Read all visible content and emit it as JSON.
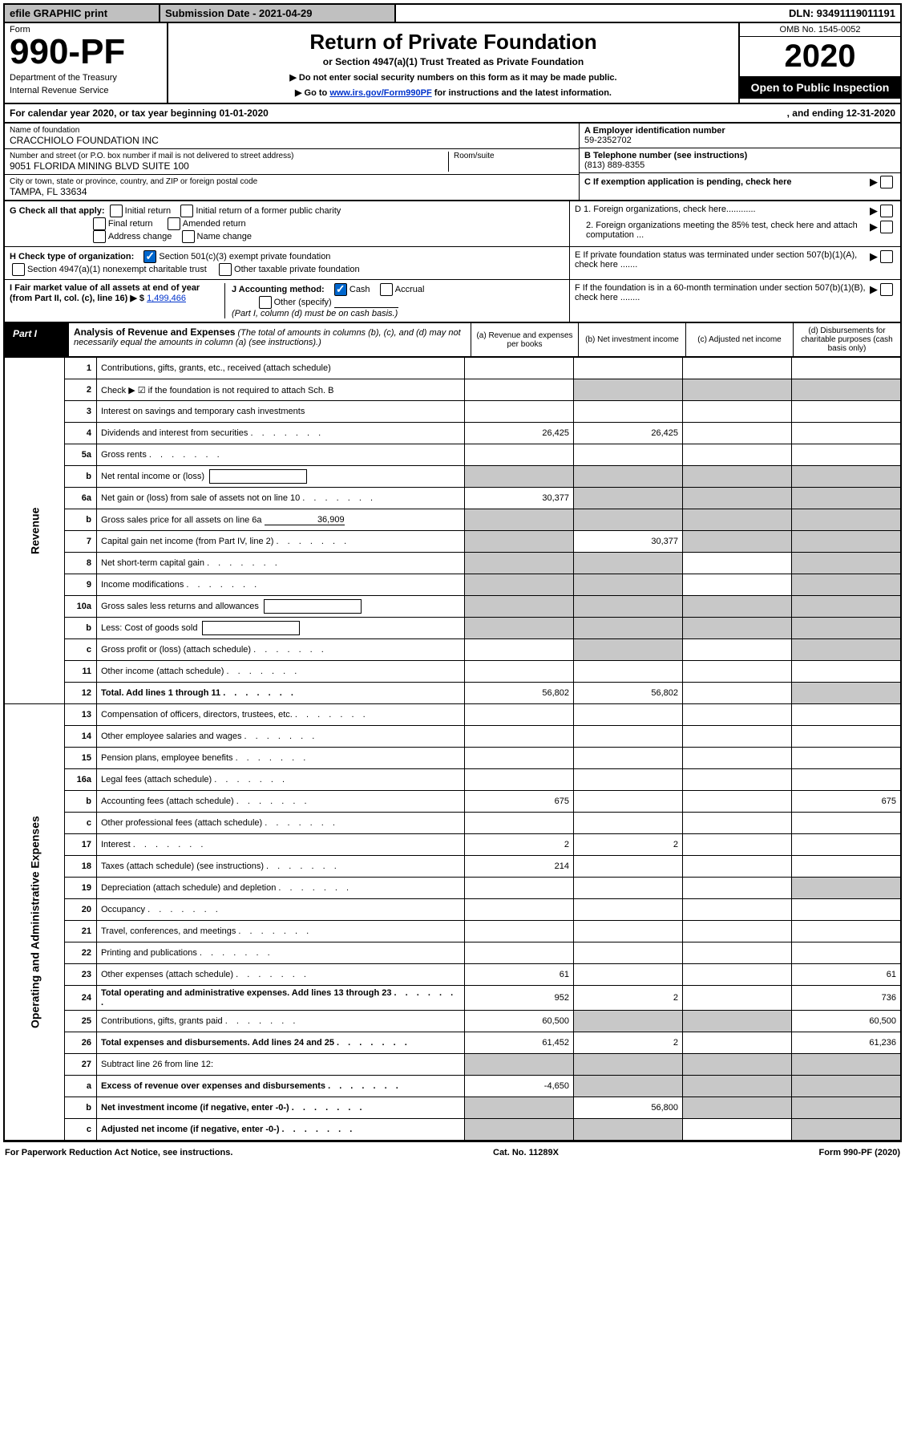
{
  "top": {
    "efile": "efile GRAPHIC print",
    "submission": "Submission Date - 2021-04-29",
    "dln": "DLN: 93491119011191"
  },
  "header": {
    "form_label": "Form",
    "form_number": "990-PF",
    "dept": "Department of the Treasury",
    "irs": "Internal Revenue Service",
    "title": "Return of Private Foundation",
    "subtitle": "or Section 4947(a)(1) Trust Treated as Private Foundation",
    "note1": "▶ Do not enter social security numbers on this form as it may be made public.",
    "note2_pre": "▶ Go to ",
    "note2_link": "www.irs.gov/Form990PF",
    "note2_post": " for instructions and the latest information.",
    "omb": "OMB No. 1545-0052",
    "year": "2020",
    "open": "Open to Public Inspection"
  },
  "cal": {
    "left": "For calendar year 2020, or tax year beginning 01-01-2020",
    "right": ", and ending 12-31-2020"
  },
  "info": {
    "name_label": "Name of foundation",
    "name": "CRACCHIOLO FOUNDATION INC",
    "addr_label": "Number and street (or P.O. box number if mail is not delivered to street address)",
    "addr": "9051 FLORIDA MINING BLVD SUITE 100",
    "room_label": "Room/suite",
    "city_label": "City or town, state or province, country, and ZIP or foreign postal code",
    "city": "TAMPA, FL  33634",
    "a_label": "A Employer identification number",
    "a_value": "59-2352702",
    "b_label": "B Telephone number (see instructions)",
    "b_value": "(813) 889-8355",
    "c_label": "C If exemption application is pending, check here"
  },
  "checks": {
    "g_label": "G Check all that apply:",
    "g_opts": [
      "Initial return",
      "Initial return of a former public charity",
      "Final return",
      "Amended return",
      "Address change",
      "Name change"
    ],
    "h_label": "H Check type of organization:",
    "h_opt1": "Section 501(c)(3) exempt private foundation",
    "h_opt2": "Section 4947(a)(1) nonexempt charitable trust",
    "h_opt3": "Other taxable private foundation",
    "i_label": "I Fair market value of all assets at end of year (from Part II, col. (c), line 16) ▶ $",
    "i_value": "1,499,466",
    "j_label": "J Accounting method:",
    "j_cash": "Cash",
    "j_accrual": "Accrual",
    "j_other": "Other (specify)",
    "j_note": "(Part I, column (d) must be on cash basis.)",
    "d1": "D 1. Foreign organizations, check here............",
    "d2": "2. Foreign organizations meeting the 85% test, check here and attach computation ...",
    "e": "E If private foundation status was terminated under section 507(b)(1)(A), check here .......",
    "f": "F If the foundation is in a 60-month termination under section 507(b)(1)(B), check here ........"
  },
  "part1": {
    "label": "Part I",
    "title": "Analysis of Revenue and Expenses",
    "note": "(The total of amounts in columns (b), (c), and (d) may not necessarily equal the amounts in column (a) (see instructions).)",
    "col_a": "(a)   Revenue and expenses per books",
    "col_b": "(b)   Net investment income",
    "col_c": "(c)   Adjusted net income",
    "col_d": "(d)   Disbursements for charitable purposes (cash basis only)"
  },
  "sides": {
    "revenue": "Revenue",
    "expenses": "Operating and Administrative Expenses"
  },
  "rows": [
    {
      "n": "1",
      "d": "Contributions, gifts, grants, etc., received (attach schedule)",
      "a": "",
      "b": "",
      "c": "",
      "e": ""
    },
    {
      "n": "2",
      "d": "Check ▶ ☑ if the foundation is not required to attach Sch. B",
      "a": "",
      "b": "",
      "c": "",
      "e": "",
      "shade_b": true,
      "shade_c": true,
      "shade_d": true
    },
    {
      "n": "3",
      "d": "Interest on savings and temporary cash investments",
      "a": "",
      "b": "",
      "c": "",
      "e": ""
    },
    {
      "n": "4",
      "d": "Dividends and interest from securities",
      "a": "26,425",
      "b": "26,425",
      "c": "",
      "e": ""
    },
    {
      "n": "5a",
      "d": "Gross rents",
      "a": "",
      "b": "",
      "c": "",
      "e": ""
    },
    {
      "n": "b",
      "d": "Net rental income or (loss)",
      "a": "",
      "b": "",
      "c": "",
      "e": "",
      "inline_box": true,
      "shade_all": true
    },
    {
      "n": "6a",
      "d": "Net gain or (loss) from sale of assets not on line 10",
      "a": "30,377",
      "b": "",
      "c": "",
      "e": "",
      "shade_b": true,
      "shade_c": true,
      "shade_d": true
    },
    {
      "n": "b",
      "d": "Gross sales price for all assets on line 6a",
      "a": "",
      "b": "",
      "c": "",
      "e": "",
      "inline_val": "36,909",
      "shade_all": true
    },
    {
      "n": "7",
      "d": "Capital gain net income (from Part IV, line 2)",
      "a": "",
      "b": "30,377",
      "c": "",
      "e": "",
      "shade_a": true,
      "shade_c": true,
      "shade_d": true
    },
    {
      "n": "8",
      "d": "Net short-term capital gain",
      "a": "",
      "b": "",
      "c": "",
      "e": "",
      "shade_a": true,
      "shade_b": true,
      "shade_d": true
    },
    {
      "n": "9",
      "d": "Income modifications",
      "a": "",
      "b": "",
      "c": "",
      "e": "",
      "shade_a": true,
      "shade_b": true,
      "shade_d": true
    },
    {
      "n": "10a",
      "d": "Gross sales less returns and allowances",
      "a": "",
      "b": "",
      "c": "",
      "e": "",
      "inline_box": true,
      "shade_all": true
    },
    {
      "n": "b",
      "d": "Less: Cost of goods sold",
      "a": "",
      "b": "",
      "c": "",
      "e": "",
      "inline_box": true,
      "shade_all": true
    },
    {
      "n": "c",
      "d": "Gross profit or (loss) (attach schedule)",
      "a": "",
      "b": "",
      "c": "",
      "e": "",
      "shade_b": true,
      "shade_d": true
    },
    {
      "n": "11",
      "d": "Other income (attach schedule)",
      "a": "",
      "b": "",
      "c": "",
      "e": ""
    },
    {
      "n": "12",
      "d": "Total. Add lines 1 through 11",
      "a": "56,802",
      "b": "56,802",
      "c": "",
      "e": "",
      "bold": true,
      "shade_d": true
    },
    {
      "n": "13",
      "d": "Compensation of officers, directors, trustees, etc.",
      "a": "",
      "b": "",
      "c": "",
      "e": ""
    },
    {
      "n": "14",
      "d": "Other employee salaries and wages",
      "a": "",
      "b": "",
      "c": "",
      "e": ""
    },
    {
      "n": "15",
      "d": "Pension plans, employee benefits",
      "a": "",
      "b": "",
      "c": "",
      "e": ""
    },
    {
      "n": "16a",
      "d": "Legal fees (attach schedule)",
      "a": "",
      "b": "",
      "c": "",
      "e": ""
    },
    {
      "n": "b",
      "d": "Accounting fees (attach schedule)",
      "a": "675",
      "b": "",
      "c": "",
      "e": "675"
    },
    {
      "n": "c",
      "d": "Other professional fees (attach schedule)",
      "a": "",
      "b": "",
      "c": "",
      "e": ""
    },
    {
      "n": "17",
      "d": "Interest",
      "a": "2",
      "b": "2",
      "c": "",
      "e": ""
    },
    {
      "n": "18",
      "d": "Taxes (attach schedule) (see instructions)",
      "a": "214",
      "b": "",
      "c": "",
      "e": ""
    },
    {
      "n": "19",
      "d": "Depreciation (attach schedule) and depletion",
      "a": "",
      "b": "",
      "c": "",
      "e": "",
      "shade_d": true
    },
    {
      "n": "20",
      "d": "Occupancy",
      "a": "",
      "b": "",
      "c": "",
      "e": ""
    },
    {
      "n": "21",
      "d": "Travel, conferences, and meetings",
      "a": "",
      "b": "",
      "c": "",
      "e": ""
    },
    {
      "n": "22",
      "d": "Printing and publications",
      "a": "",
      "b": "",
      "c": "",
      "e": ""
    },
    {
      "n": "23",
      "d": "Other expenses (attach schedule)",
      "a": "61",
      "b": "",
      "c": "",
      "e": "61"
    },
    {
      "n": "24",
      "d": "Total operating and administrative expenses. Add lines 13 through 23",
      "a": "952",
      "b": "2",
      "c": "",
      "e": "736",
      "bold": true
    },
    {
      "n": "25",
      "d": "Contributions, gifts, grants paid",
      "a": "60,500",
      "b": "",
      "c": "",
      "e": "60,500",
      "shade_b": true,
      "shade_c": true
    },
    {
      "n": "26",
      "d": "Total expenses and disbursements. Add lines 24 and 25",
      "a": "61,452",
      "b": "2",
      "c": "",
      "e": "61,236",
      "bold": true
    },
    {
      "n": "27",
      "d": "Subtract line 26 from line 12:",
      "a": "",
      "b": "",
      "c": "",
      "e": "",
      "shade_all": true
    },
    {
      "n": "a",
      "d": "Excess of revenue over expenses and disbursements",
      "a": "-4,650",
      "b": "",
      "c": "",
      "e": "",
      "bold": true,
      "shade_b": true,
      "shade_c": true,
      "shade_d": true
    },
    {
      "n": "b",
      "d": "Net investment income (if negative, enter -0-)",
      "a": "",
      "b": "56,800",
      "c": "",
      "e": "",
      "bold": true,
      "shade_a": true,
      "shade_c": true,
      "shade_d": true
    },
    {
      "n": "c",
      "d": "Adjusted net income (if negative, enter -0-)",
      "a": "",
      "b": "",
      "c": "",
      "e": "",
      "bold": true,
      "shade_a": true,
      "shade_b": true,
      "shade_d": true
    }
  ],
  "footer": {
    "left": "For Paperwork Reduction Act Notice, see instructions.",
    "mid": "Cat. No. 11289X",
    "right": "Form 990-PF (2020)"
  }
}
